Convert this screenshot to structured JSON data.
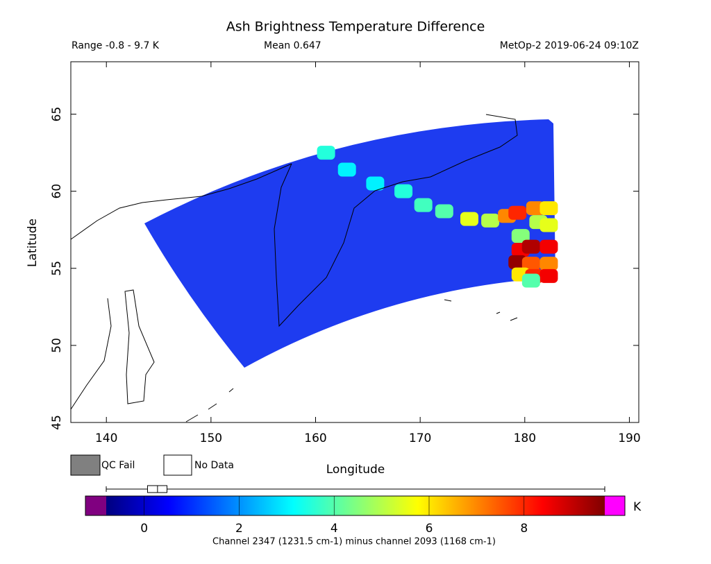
{
  "chart_data": {
    "type": "map",
    "title": "Ash Brightness Temperature Difference",
    "subtitle_left": "Range -0.8 - 9.7 K",
    "subtitle_center": "Mean 0.647",
    "subtitle_right": "MetOp-2 2019-06-24 09:10Z",
    "x_label": "Longitude",
    "y_label": "Latitude",
    "xlim": [
      136.6,
      190.9
    ],
    "ylim": [
      45,
      68.4
    ],
    "xticks": [
      140,
      150,
      160,
      170,
      180,
      190
    ],
    "yticks": [
      45,
      50,
      55,
      60,
      65
    ],
    "x": [
      161.0,
      163.0,
      165.7,
      168.4,
      170.3,
      172.3,
      174.7,
      176.7,
      178.3,
      179.3,
      181.0,
      182.3,
      181.3,
      182.3,
      179.6,
      179.6,
      180.6,
      182.3,
      179.3,
      180.6,
      182.3,
      179.6,
      180.9,
      182.3,
      180.6
    ],
    "y": [
      62.5,
      61.4,
      60.5,
      60.0,
      59.1,
      58.7,
      58.2,
      58.1,
      58.4,
      58.6,
      58.9,
      58.9,
      58.0,
      57.8,
      57.1,
      56.2,
      56.4,
      56.4,
      55.4,
      55.3,
      55.3,
      54.6,
      54.5,
      54.5,
      54.2
    ],
    "values": [
      3.5,
      3,
      3,
      3.5,
      3.8,
      4,
      5.5,
      5,
      7,
      8,
      7,
      6,
      5,
      5.5,
      4.5,
      8.5,
      9.2,
      8.5,
      9.5,
      7.5,
      7,
      6,
      8,
      8.5,
      4
    ],
    "colormap": [
      "#00007f",
      "#0000ff",
      "#0080ff",
      "#00ffff",
      "#80ff80",
      "#ffff00",
      "#ff8000",
      "#ff0000",
      "#800000"
    ],
    "clim": [
      -0.8,
      9.7
    ],
    "cticks": [
      0,
      2,
      4,
      6,
      8
    ],
    "under_color": "#800080",
    "over_color": "#ff00ff",
    "colorbar_unit": "K",
    "box_whisker": [
      -0.8,
      9.7
    ],
    "box": [
      0.07,
      0.48
    ],
    "box_median": 0.28,
    "legend": [
      {
        "name": "QC Fail",
        "color": "#808080"
      },
      {
        "name": "No Data",
        "color": "#ffffff"
      }
    ],
    "footer": "Channel 2347 (1231.5 cm-1) minus channel 2093 (1168 cm-1)"
  }
}
